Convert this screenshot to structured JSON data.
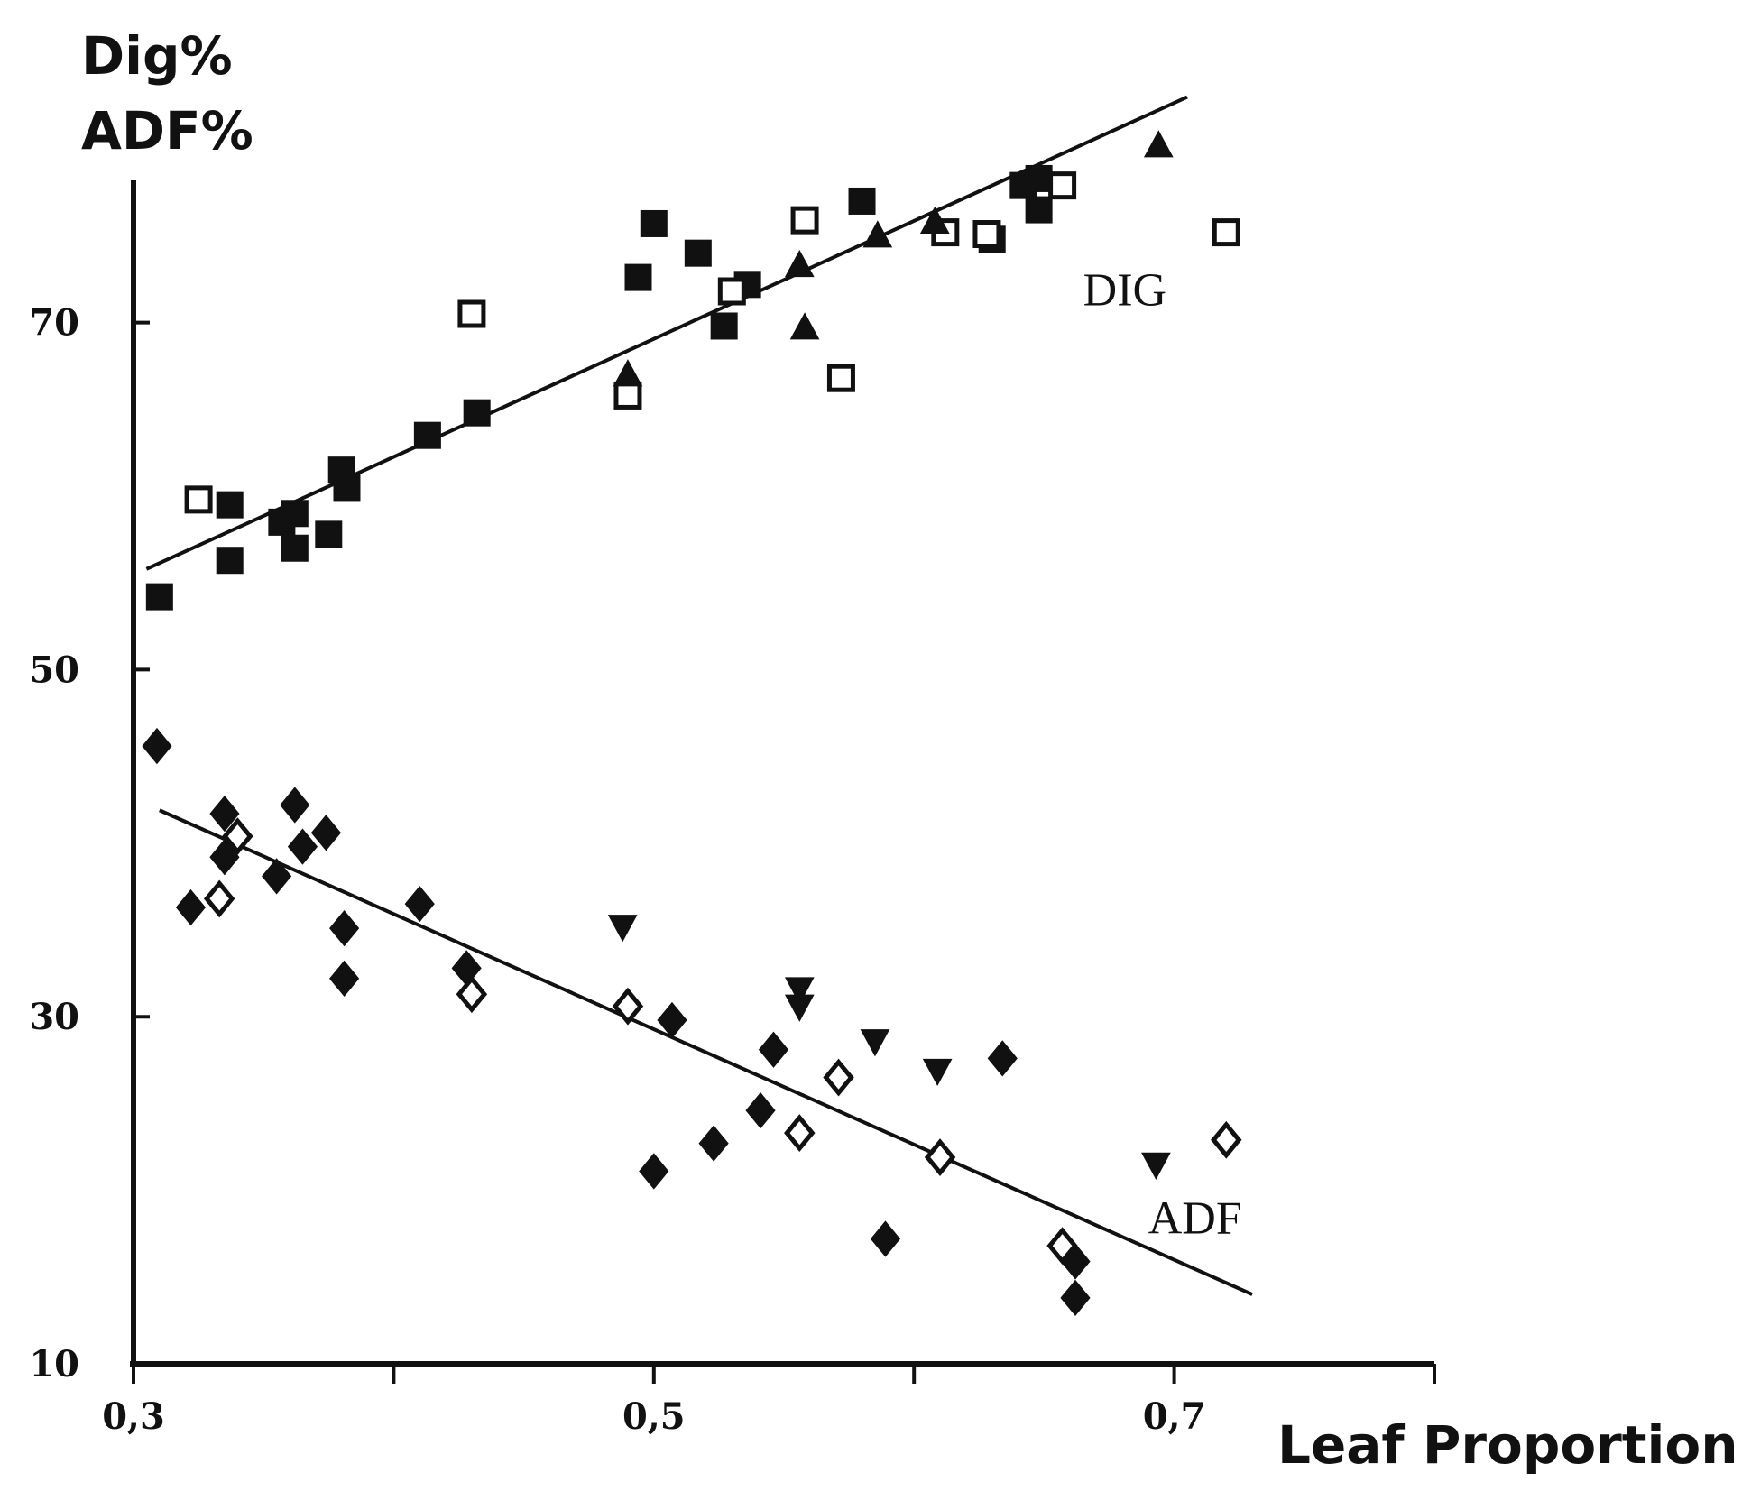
{
  "chart_data": {
    "type": "scatter",
    "ylabel_lines": [
      "Dig%",
      "ADF%"
    ],
    "xlabel": "Leaf Proportion",
    "xlim": [
      0.3,
      0.8
    ],
    "ylim": [
      10,
      81
    ],
    "x_ticks": [
      0.3,
      0.4,
      0.5,
      0.6,
      0.7,
      0.8
    ],
    "x_tick_labels": [
      {
        "value": 0.3,
        "label": "0,3"
      },
      {
        "value": 0.5,
        "label": "0,5"
      },
      {
        "value": 0.7,
        "label": "0,7"
      }
    ],
    "y_ticks": [
      10,
      30,
      50,
      70
    ],
    "y_tick_labels": [
      {
        "value": 10,
        "label": "10"
      },
      {
        "value": 30,
        "label": "30"
      },
      {
        "value": 50,
        "label": "50"
      },
      {
        "value": 70,
        "label": "70"
      }
    ],
    "fit_lines": [
      {
        "name": "DIG",
        "x": [
          0.305,
          0.705
        ],
        "y": [
          55.8,
          83.0
        ]
      },
      {
        "name": "ADF",
        "x": [
          0.31,
          0.73
        ],
        "y": [
          41.9,
          14.0
        ]
      }
    ],
    "annotations": [
      {
        "text": "DIG",
        "x": 0.665,
        "y": 71.0
      },
      {
        "text": "ADF",
        "x": 0.69,
        "y": 17.5
      }
    ],
    "series": [
      {
        "name": "DIG filled squares",
        "marker": "square",
        "filled": true,
        "points": [
          [
            0.31,
            54.2
          ],
          [
            0.337,
            59.5
          ],
          [
            0.337,
            56.3
          ],
          [
            0.357,
            58.5
          ],
          [
            0.362,
            57.0
          ],
          [
            0.362,
            59.0
          ],
          [
            0.375,
            57.8
          ],
          [
            0.38,
            61.5
          ],
          [
            0.382,
            60.5
          ],
          [
            0.413,
            63.5
          ],
          [
            0.432,
            64.8
          ],
          [
            0.494,
            72.6
          ],
          [
            0.5,
            75.7
          ],
          [
            0.517,
            74.0
          ],
          [
            0.527,
            69.8
          ],
          [
            0.536,
            72.2
          ],
          [
            0.58,
            77.0
          ],
          [
            0.63,
            74.8
          ],
          [
            0.642,
            77.9
          ],
          [
            0.648,
            78.3
          ],
          [
            0.648,
            76.5
          ]
        ]
      },
      {
        "name": "DIG open squares",
        "marker": "square",
        "filled": false,
        "points": [
          [
            0.325,
            59.8
          ],
          [
            0.43,
            70.5
          ],
          [
            0.49,
            65.8
          ],
          [
            0.53,
            71.8
          ],
          [
            0.558,
            75.9
          ],
          [
            0.572,
            66.8
          ],
          [
            0.612,
            75.2
          ],
          [
            0.628,
            75.1
          ],
          [
            0.657,
            77.9
          ],
          [
            0.72,
            75.2
          ]
        ]
      },
      {
        "name": "DIG filled triangles",
        "marker": "triangle-up",
        "filled": true,
        "points": [
          [
            0.49,
            67.0
          ],
          [
            0.556,
            73.3
          ],
          [
            0.558,
            69.7
          ],
          [
            0.586,
            75.0
          ],
          [
            0.608,
            75.8
          ],
          [
            0.694,
            80.2
          ]
        ]
      },
      {
        "name": "ADF filled diamonds",
        "marker": "diamond",
        "filled": true,
        "points": [
          [
            0.309,
            45.6
          ],
          [
            0.322,
            36.3
          ],
          [
            0.335,
            41.7
          ],
          [
            0.335,
            39.2
          ],
          [
            0.355,
            38.1
          ],
          [
            0.362,
            42.2
          ],
          [
            0.365,
            39.8
          ],
          [
            0.374,
            40.6
          ],
          [
            0.381,
            35.1
          ],
          [
            0.381,
            32.2
          ],
          [
            0.41,
            36.5
          ],
          [
            0.428,
            32.8
          ],
          [
            0.5,
            21.1
          ],
          [
            0.507,
            29.8
          ],
          [
            0.523,
            22.7
          ],
          [
            0.541,
            24.6
          ],
          [
            0.546,
            28.1
          ],
          [
            0.589,
            17.2
          ],
          [
            0.634,
            27.6
          ],
          [
            0.662,
            15.9
          ],
          [
            0.662,
            13.8
          ]
        ]
      },
      {
        "name": "ADF open diamonds",
        "marker": "diamond",
        "filled": false,
        "points": [
          [
            0.333,
            36.8
          ],
          [
            0.34,
            40.4
          ],
          [
            0.43,
            31.3
          ],
          [
            0.49,
            30.6
          ],
          [
            0.556,
            23.3
          ],
          [
            0.571,
            26.5
          ],
          [
            0.61,
            21.9
          ],
          [
            0.657,
            16.8
          ],
          [
            0.72,
            22.9
          ]
        ]
      },
      {
        "name": "ADF filled triangles down",
        "marker": "triangle-down",
        "filled": true,
        "points": [
          [
            0.488,
            35.2
          ],
          [
            0.556,
            31.6
          ],
          [
            0.556,
            30.6
          ],
          [
            0.585,
            28.6
          ],
          [
            0.609,
            26.9
          ],
          [
            0.693,
            21.5
          ]
        ]
      }
    ]
  }
}
